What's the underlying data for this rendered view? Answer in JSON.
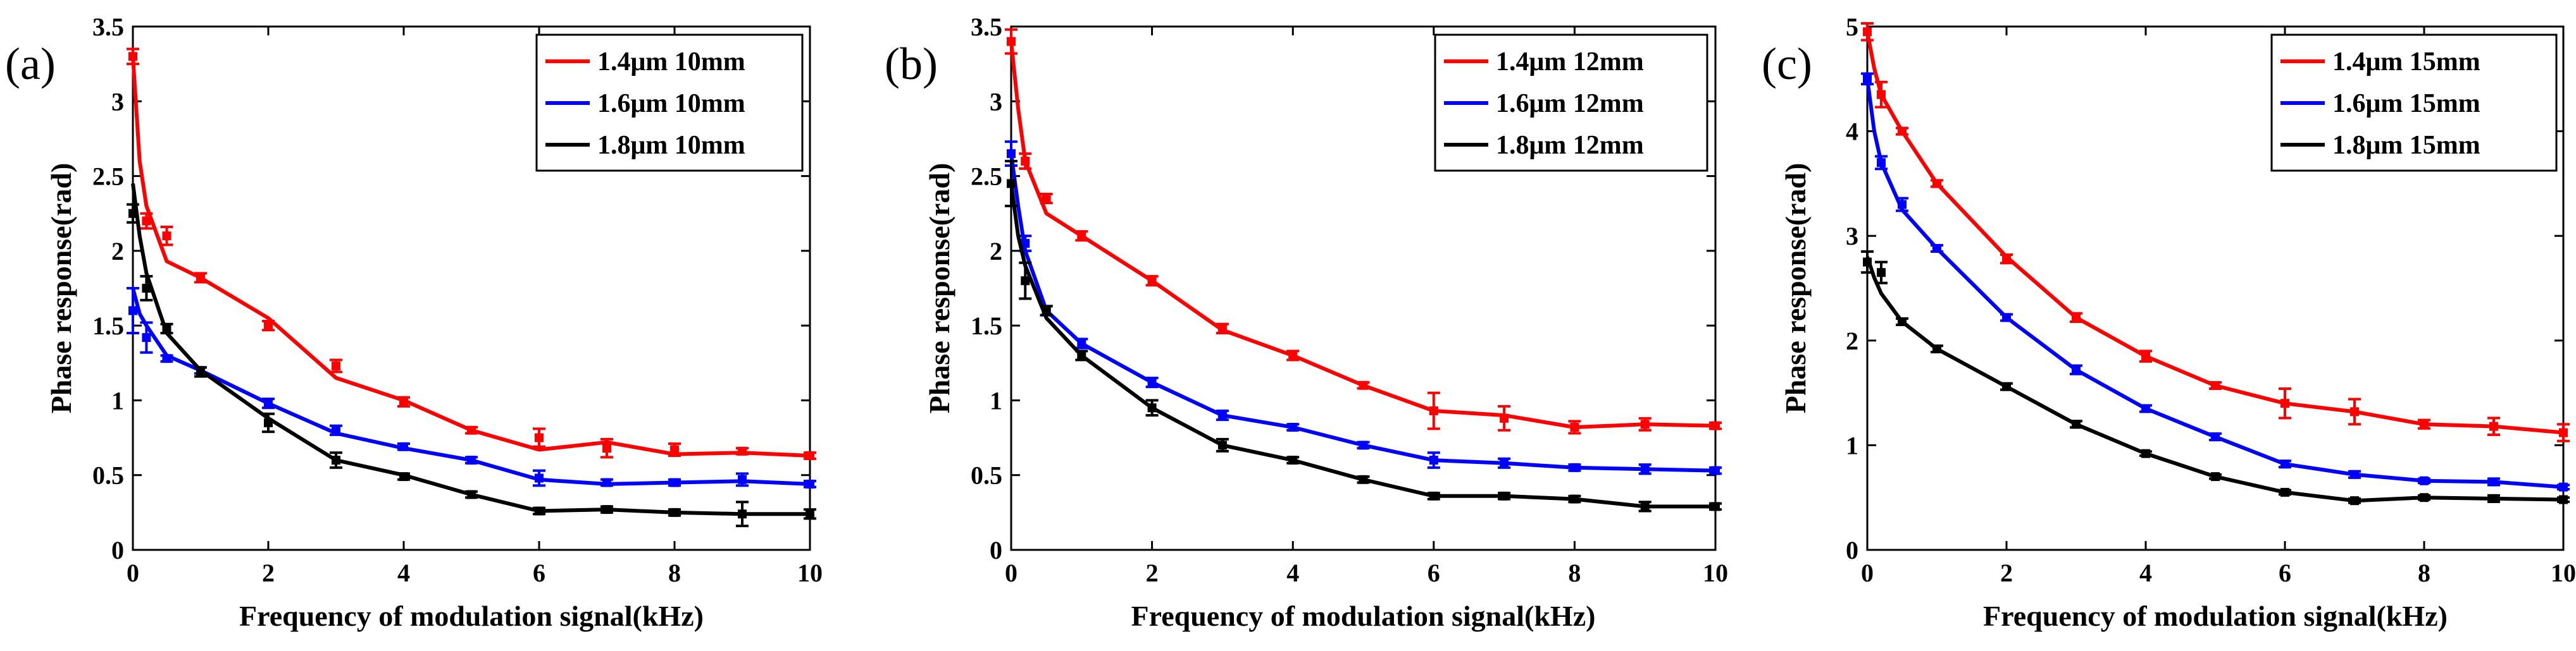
{
  "chart_data": [
    {
      "type": "line",
      "panel_label": "(a)",
      "xlabel": "Frequency of modulation signal(kHz)",
      "ylabel": "Phase response(rad)",
      "xlim": [
        0,
        10
      ],
      "ylim": [
        0,
        3.5
      ],
      "xticks": [
        0,
        2,
        4,
        6,
        8,
        10
      ],
      "xtick_labels": [
        "0",
        "2",
        "4",
        "6",
        "8",
        "10"
      ],
      "yticks": [
        0,
        0.5,
        1,
        1.5,
        2,
        2.5,
        3,
        3.5
      ],
      "ytick_labels": [
        "0",
        "0.5",
        "1",
        "1.5",
        "2",
        "2.5",
        "3",
        "3.5"
      ],
      "legend_position": "top-right",
      "series": [
        {
          "name": "1.4μm 10mm",
          "color": "#ff0000",
          "line_x": [
            0,
            0.1,
            0.2,
            0.5,
            1,
            2,
            3,
            4,
            5,
            6,
            7,
            8,
            9,
            10
          ],
          "line_y": [
            3.3,
            2.6,
            2.3,
            1.93,
            1.82,
            1.55,
            1.15,
            1.0,
            0.8,
            0.67,
            0.72,
            0.64,
            0.65,
            0.63
          ],
          "points_x": [
            0,
            0.2,
            0.5,
            1,
            2,
            3,
            4,
            5,
            6,
            7,
            8,
            9,
            10
          ],
          "points_y": [
            3.3,
            2.2,
            2.1,
            1.82,
            1.5,
            1.23,
            0.99,
            0.8,
            0.75,
            0.68,
            0.67,
            0.66,
            0.63
          ],
          "errors": [
            0.05,
            0.05,
            0.06,
            0.03,
            0.03,
            0.04,
            0.03,
            0.02,
            0.06,
            0.06,
            0.04,
            0.02,
            0.02
          ]
        },
        {
          "name": "1.6μm 10mm",
          "color": "#0000ff",
          "line_x": [
            0,
            0.1,
            0.2,
            0.5,
            1,
            2,
            3,
            4,
            5,
            6,
            7,
            8,
            9,
            10
          ],
          "line_y": [
            1.75,
            1.58,
            1.5,
            1.3,
            1.2,
            0.98,
            0.78,
            0.68,
            0.6,
            0.47,
            0.44,
            0.45,
            0.46,
            0.44
          ],
          "points_x": [
            0,
            0.2,
            0.5,
            1,
            2,
            3,
            4,
            5,
            6,
            7,
            8,
            9,
            10
          ],
          "points_y": [
            1.6,
            1.42,
            1.28,
            1.2,
            0.98,
            0.8,
            0.69,
            0.6,
            0.48,
            0.45,
            0.45,
            0.47,
            0.44
          ],
          "errors": [
            0.15,
            0.1,
            0.02,
            0.02,
            0.03,
            0.03,
            0.02,
            0.02,
            0.05,
            0.02,
            0.02,
            0.04,
            0.02
          ]
        },
        {
          "name": "1.8μm 10mm",
          "color": "#000000",
          "line_x": [
            0,
            0.1,
            0.2,
            0.5,
            1,
            2,
            3,
            4,
            5,
            6,
            7,
            8,
            9,
            10
          ],
          "line_y": [
            2.45,
            2.1,
            1.85,
            1.45,
            1.2,
            0.88,
            0.6,
            0.5,
            0.37,
            0.26,
            0.27,
            0.25,
            0.24,
            0.24
          ],
          "points_x": [
            0,
            0.2,
            0.5,
            1,
            2,
            3,
            4,
            5,
            6,
            7,
            8,
            9,
            10
          ],
          "points_y": [
            2.25,
            1.75,
            1.48,
            1.19,
            0.85,
            0.6,
            0.49,
            0.37,
            0.26,
            0.27,
            0.25,
            0.24,
            0.24
          ],
          "errors": [
            0.06,
            0.08,
            0.03,
            0.03,
            0.06,
            0.05,
            0.02,
            0.02,
            0.02,
            0.02,
            0.02,
            0.08,
            0.03
          ]
        }
      ]
    },
    {
      "type": "line",
      "panel_label": "(b)",
      "xlabel": "Frequency of modulation signal(kHz)",
      "ylabel": "Phase response(rad)",
      "xlim": [
        0,
        10
      ],
      "ylim": [
        0,
        3.5
      ],
      "xticks": [
        0,
        2,
        4,
        6,
        8,
        10
      ],
      "xtick_labels": [
        "0",
        "2",
        "4",
        "6",
        "8",
        "10"
      ],
      "yticks": [
        0,
        0.5,
        1,
        1.5,
        2,
        2.5,
        3,
        3.5
      ],
      "ytick_labels": [
        "0",
        "0.5",
        "1",
        "1.5",
        "2",
        "2.5",
        "3",
        "3.5"
      ],
      "legend_position": "top-right",
      "series": [
        {
          "name": "1.4μm 12mm",
          "color": "#ff0000",
          "line_x": [
            0,
            0.1,
            0.2,
            0.5,
            1,
            2,
            3,
            4,
            5,
            6,
            7,
            8,
            9,
            10
          ],
          "line_y": [
            3.4,
            2.95,
            2.6,
            2.25,
            2.1,
            1.8,
            1.47,
            1.3,
            1.1,
            0.93,
            0.9,
            0.82,
            0.84,
            0.83
          ],
          "points_x": [
            0,
            0.2,
            0.5,
            1,
            2,
            3,
            4,
            5,
            6,
            7,
            8,
            9,
            10
          ],
          "points_y": [
            3.4,
            2.6,
            2.35,
            2.1,
            1.8,
            1.48,
            1.3,
            1.1,
            0.93,
            0.88,
            0.82,
            0.84,
            0.83
          ],
          "errors": [
            0.08,
            0.05,
            0.03,
            0.03,
            0.03,
            0.03,
            0.03,
            0.02,
            0.12,
            0.08,
            0.04,
            0.04,
            0.02
          ]
        },
        {
          "name": "1.6μm 12mm",
          "color": "#0000ff",
          "line_x": [
            0,
            0.1,
            0.2,
            0.5,
            1,
            2,
            3,
            4,
            5,
            6,
            7,
            8,
            9,
            10
          ],
          "line_y": [
            2.65,
            2.3,
            2.0,
            1.6,
            1.38,
            1.12,
            0.9,
            0.82,
            0.7,
            0.6,
            0.58,
            0.55,
            0.54,
            0.53
          ],
          "points_x": [
            0,
            0.2,
            0.5,
            1,
            2,
            3,
            4,
            5,
            6,
            7,
            8,
            9,
            10
          ],
          "points_y": [
            2.65,
            2.05,
            1.6,
            1.38,
            1.12,
            0.9,
            0.82,
            0.7,
            0.6,
            0.58,
            0.55,
            0.54,
            0.53
          ],
          "errors": [
            0.08,
            0.05,
            0.03,
            0.03,
            0.03,
            0.03,
            0.02,
            0.02,
            0.05,
            0.03,
            0.02,
            0.03,
            0.02
          ]
        },
        {
          "name": "1.8μm 12mm",
          "color": "#000000",
          "line_x": [
            0,
            0.1,
            0.2,
            0.5,
            1,
            2,
            3,
            4,
            5,
            6,
            7,
            8,
            9,
            10
          ],
          "line_y": [
            2.45,
            2.1,
            1.9,
            1.55,
            1.3,
            0.95,
            0.7,
            0.6,
            0.47,
            0.36,
            0.36,
            0.34,
            0.29,
            0.29
          ],
          "points_x": [
            0,
            0.2,
            0.5,
            1,
            2,
            3,
            4,
            5,
            6,
            7,
            8,
            9,
            10
          ],
          "points_y": [
            2.45,
            1.8,
            1.6,
            1.3,
            0.95,
            0.7,
            0.6,
            0.47,
            0.36,
            0.36,
            0.34,
            0.29,
            0.29
          ],
          "errors": [
            0.15,
            0.12,
            0.03,
            0.03,
            0.05,
            0.04,
            0.02,
            0.02,
            0.02,
            0.02,
            0.02,
            0.03,
            0.02
          ]
        }
      ]
    },
    {
      "type": "line",
      "panel_label": "(c)",
      "xlabel": "Frequency of modulation signal(kHz)",
      "ylabel": "Phase response(rad)",
      "xlim": [
        0,
        10
      ],
      "ylim": [
        0,
        5
      ],
      "xticks": [
        0,
        2,
        4,
        6,
        8,
        10
      ],
      "xtick_labels": [
        "0",
        "2",
        "4",
        "6",
        "8",
        "10"
      ],
      "yticks": [
        0,
        1,
        2,
        3,
        4,
        5
      ],
      "ytick_labels": [
        "0",
        "1",
        "2",
        "3",
        "4",
        "5"
      ],
      "legend_position": "top-right",
      "series": [
        {
          "name": "1.4μm 15mm",
          "color": "#ff0000",
          "line_x": [
            0,
            0.1,
            0.2,
            0.5,
            1,
            2,
            3,
            4,
            5,
            6,
            7,
            8,
            9,
            10
          ],
          "line_y": [
            4.95,
            4.6,
            4.35,
            4.0,
            3.5,
            2.8,
            2.22,
            1.85,
            1.57,
            1.4,
            1.32,
            1.2,
            1.18,
            1.12
          ],
          "points_x": [
            0,
            0.2,
            0.5,
            1,
            2,
            3,
            4,
            5,
            6,
            7,
            8,
            9,
            10
          ],
          "points_y": [
            4.95,
            4.35,
            4.0,
            3.5,
            2.78,
            2.22,
            1.85,
            1.57,
            1.4,
            1.32,
            1.2,
            1.18,
            1.12
          ],
          "errors": [
            0.08,
            0.12,
            0.03,
            0.03,
            0.04,
            0.04,
            0.05,
            0.03,
            0.14,
            0.12,
            0.04,
            0.08,
            0.08
          ]
        },
        {
          "name": "1.6μm 15mm",
          "color": "#0000ff",
          "line_x": [
            0,
            0.1,
            0.2,
            0.5,
            1,
            2,
            3,
            4,
            5,
            6,
            7,
            8,
            9,
            10
          ],
          "line_y": [
            4.5,
            4.0,
            3.7,
            3.25,
            2.88,
            2.22,
            1.72,
            1.35,
            1.08,
            0.82,
            0.72,
            0.66,
            0.65,
            0.6
          ],
          "points_x": [
            0,
            0.2,
            0.5,
            1,
            2,
            3,
            4,
            5,
            6,
            7,
            8,
            9,
            10
          ],
          "points_y": [
            4.5,
            3.7,
            3.3,
            2.88,
            2.22,
            1.72,
            1.35,
            1.08,
            0.82,
            0.72,
            0.66,
            0.65,
            0.6
          ],
          "errors": [
            0.05,
            0.06,
            0.06,
            0.03,
            0.03,
            0.04,
            0.03,
            0.03,
            0.03,
            0.03,
            0.02,
            0.03,
            0.02
          ]
        },
        {
          "name": "1.8μm 15mm",
          "color": "#000000",
          "line_x": [
            0,
            0.1,
            0.2,
            0.5,
            1,
            2,
            3,
            4,
            5,
            6,
            7,
            8,
            9,
            10
          ],
          "line_y": [
            2.8,
            2.6,
            2.45,
            2.18,
            1.92,
            1.56,
            1.2,
            0.92,
            0.7,
            0.55,
            0.47,
            0.5,
            0.49,
            0.48
          ],
          "points_x": [
            0,
            0.2,
            0.5,
            1,
            2,
            3,
            4,
            5,
            6,
            7,
            8,
            9,
            10
          ],
          "points_y": [
            2.75,
            2.65,
            2.18,
            1.92,
            1.56,
            1.2,
            0.92,
            0.7,
            0.55,
            0.47,
            0.5,
            0.49,
            0.48
          ],
          "errors": [
            0.1,
            0.1,
            0.03,
            0.03,
            0.03,
            0.03,
            0.02,
            0.02,
            0.02,
            0.02,
            0.02,
            0.03,
            0.02
          ]
        }
      ]
    }
  ]
}
